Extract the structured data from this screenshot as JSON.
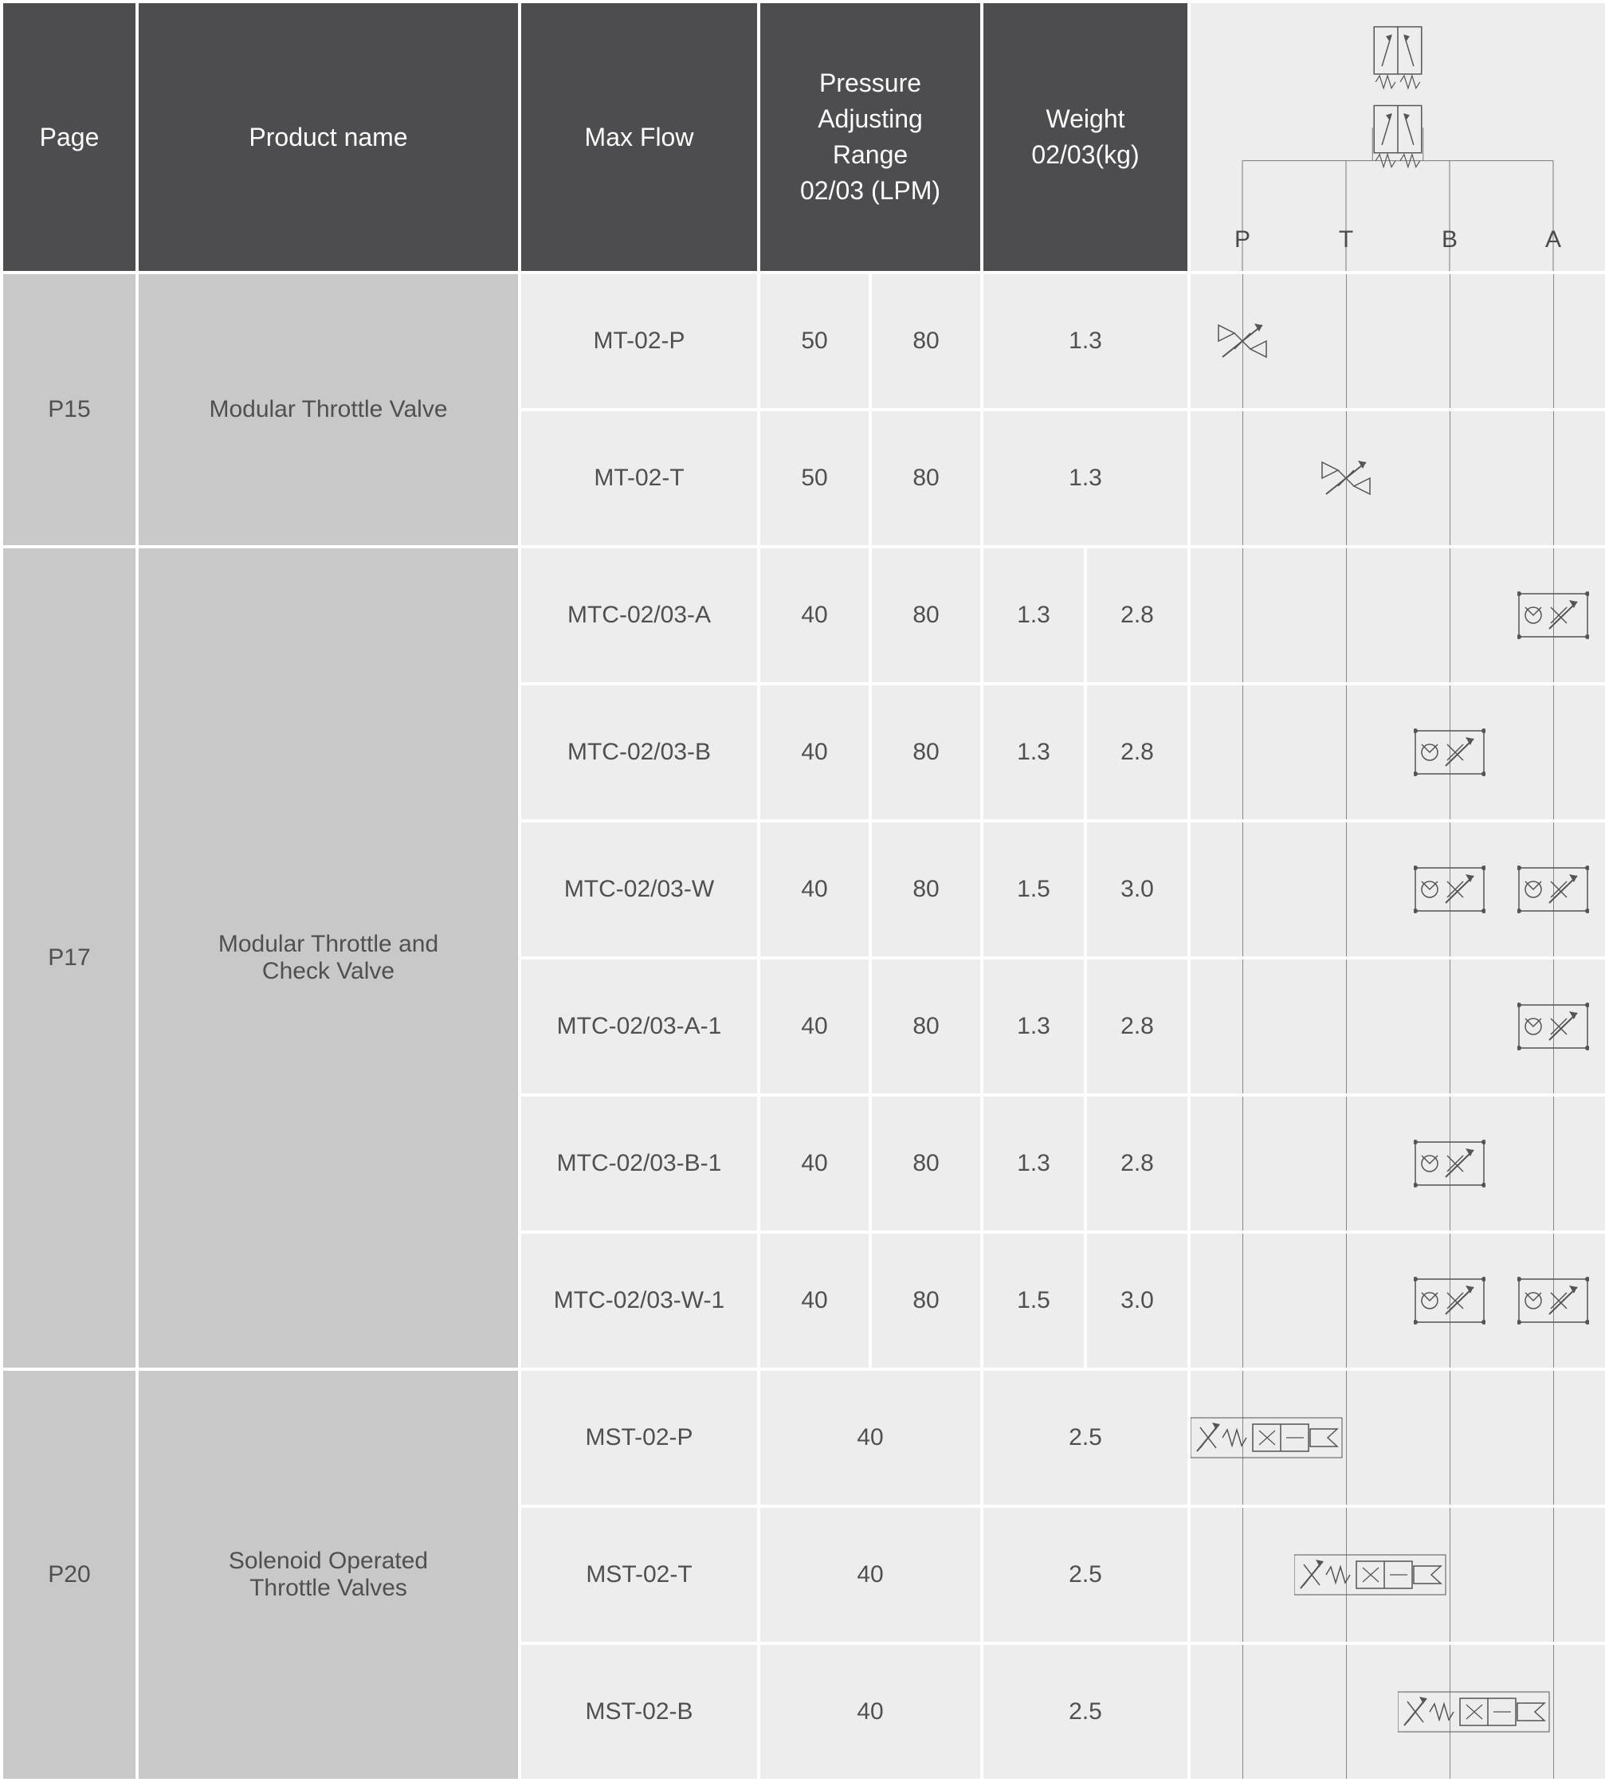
{
  "headers": {
    "page": "Page",
    "product_name": "Product name",
    "max_flow": "Max Flow",
    "pressure_range": "Pressure\nAdjusting\nRange\n02/03 (LPM)",
    "weight": "Weight\n02/03(kg)",
    "ports": {
      "p": "P",
      "t": "T",
      "b": "B",
      "a": "A"
    }
  },
  "colors": {
    "header_bg": "#4d4d50",
    "header_fg": "#ffffff",
    "cell_bg_lite": "#ededed",
    "cell_bg_med": "#c8c8c9",
    "cell_fg": "#505050",
    "symbol_line": "#7a7a7a"
  },
  "groups": [
    {
      "page": "P15",
      "name": "Modular Throttle Valve",
      "rows": [
        {
          "model": "MT-02-P",
          "p1": "50",
          "p2": "80",
          "w_merged": "1.3",
          "symbols": {
            "p": "throttle"
          }
        },
        {
          "model": "MT-02-T",
          "p1": "50",
          "p2": "80",
          "w_merged": "1.3",
          "symbols": {
            "t": "throttle"
          }
        }
      ]
    },
    {
      "page": "P17",
      "name": "Modular Throttle and\nCheck Valve",
      "rows": [
        {
          "model": "MTC-02/03-A",
          "p1": "40",
          "p2": "80",
          "w1": "1.3",
          "w2": "2.8",
          "symbols": {
            "a": "throttle-check"
          }
        },
        {
          "model": "MTC-02/03-B",
          "p1": "40",
          "p2": "80",
          "w1": "1.3",
          "w2": "2.8",
          "symbols": {
            "b": "throttle-check"
          }
        },
        {
          "model": "MTC-02/03-W",
          "p1": "40",
          "p2": "80",
          "w1": "1.5",
          "w2": "3.0",
          "symbols": {
            "b": "throttle-check",
            "a": "throttle-check"
          }
        },
        {
          "model": "MTC-02/03-A-1",
          "p1": "40",
          "p2": "80",
          "w1": "1.3",
          "w2": "2.8",
          "symbols": {
            "a": "throttle-check"
          }
        },
        {
          "model": "MTC-02/03-B-1",
          "p1": "40",
          "p2": "80",
          "w1": "1.3",
          "w2": "2.8",
          "symbols": {
            "b": "throttle-check"
          }
        },
        {
          "model": "MTC-02/03-W-1",
          "p1": "40",
          "p2": "80",
          "w1": "1.5",
          "w2": "3.0",
          "symbols": {
            "b": "throttle-check",
            "a": "throttle-check"
          }
        }
      ]
    },
    {
      "page": "P20",
      "name": "Solenoid Operated\nThrottle Valves",
      "rows": [
        {
          "model": "MST-02-P",
          "p_merged": "40",
          "w_merged": "2.5",
          "symbols": {
            "p": "solenoid-throttle"
          }
        },
        {
          "model": "MST-02-T",
          "p_merged": "40",
          "w_merged": "2.5",
          "symbols": {
            "t": "solenoid-throttle"
          }
        },
        {
          "model": "MST-02-B",
          "p_merged": "40",
          "w_merged": "2.5",
          "symbols": {
            "b": "solenoid-throttle"
          }
        }
      ]
    }
  ]
}
